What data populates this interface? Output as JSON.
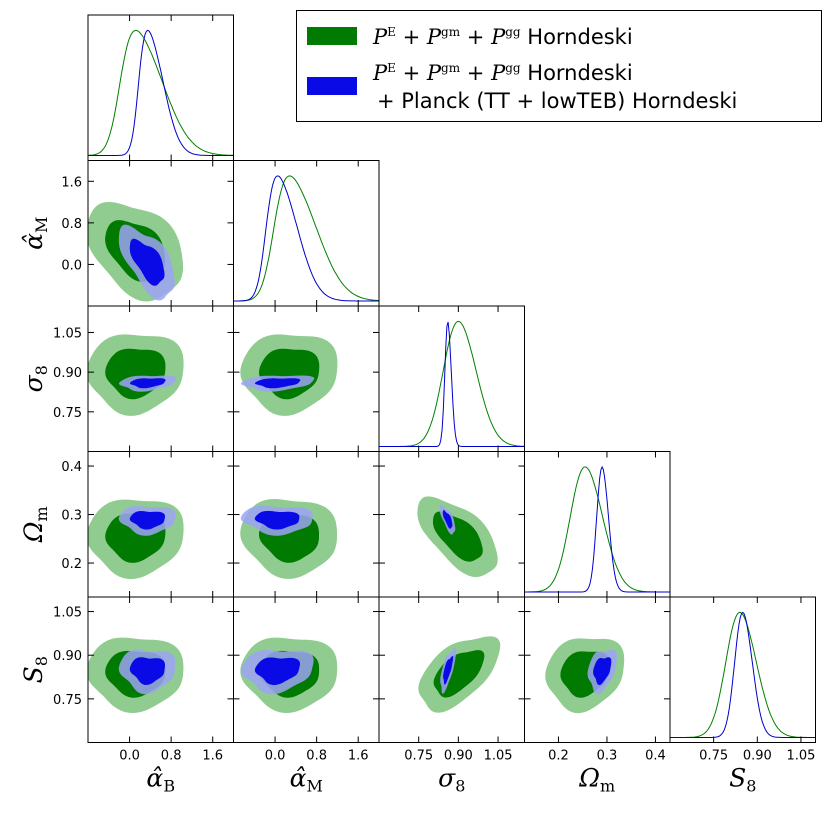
{
  "chart_data": {
    "type": "triangle-corner-plot",
    "title": "",
    "parameters": [
      {
        "key": "alpha_B",
        "label": "α̂",
        "sub": "B",
        "range": [
          -0.8,
          2.0
        ],
        "ticks": [
          0.0,
          0.8,
          1.6
        ],
        "tick_labels": [
          "0.0",
          "0.8",
          "1.6"
        ]
      },
      {
        "key": "alpha_M",
        "label": "α̂",
        "sub": "M",
        "range": [
          -0.8,
          2.0
        ],
        "ticks": [
          0.0,
          0.8,
          1.6
        ],
        "tick_labels": [
          "0.0",
          "0.8",
          "1.6"
        ]
      },
      {
        "key": "sigma_8",
        "label": "σ",
        "sub": "8",
        "range": [
          0.6,
          1.15
        ],
        "ticks": [
          0.75,
          0.9,
          1.05
        ],
        "tick_labels": [
          "0.75",
          "0.90",
          "1.05"
        ]
      },
      {
        "key": "Omega_m",
        "label": "Ω",
        "sub": "m",
        "range": [
          0.13,
          0.43
        ],
        "ticks": [
          0.2,
          0.3,
          0.4
        ],
        "tick_labels": [
          "0.2",
          "0.3",
          "0.4"
        ]
      },
      {
        "key": "S_8",
        "label": "S",
        "sub": "8",
        "range": [
          0.6,
          1.1
        ],
        "ticks": [
          0.75,
          0.9,
          1.05
        ],
        "tick_labels": [
          "0.75",
          "0.90",
          "1.05"
        ]
      }
    ],
    "series": [
      {
        "name": "green",
        "legend_math": "P",
        "legend_label": "Horndeski",
        "legend_label_line2": "",
        "line_color": "#008000",
        "inner_color": "#007a00",
        "outer_color": "#90cc90",
        "means": [
          0.12,
          0.28,
          0.9,
          0.255,
          0.84
        ],
        "sds": [
          0.38,
          0.38,
          0.062,
          0.033,
          0.052
        ],
        "corr": [
          [
            1,
            -0.35,
            0.05,
            0.05,
            0.0
          ],
          [
            -0.35,
            1,
            0.05,
            -0.05,
            0.0
          ],
          [
            0.05,
            0.05,
            1,
            -0.6,
            0.55
          ],
          [
            0.05,
            -0.05,
            -0.6,
            1,
            0.15
          ],
          [
            0.0,
            0.0,
            0.55,
            0.15,
            1
          ]
        ]
      },
      {
        "name": "blue",
        "legend_math": "P",
        "legend_label": "Horndeski",
        "legend_label_line2": "+ Planck (TT + lowTEB) Horndeski",
        "line_color": "#0000cc",
        "inner_color": "#0a0ae6",
        "outer_color": "#9da3f5",
        "means": [
          0.35,
          0.05,
          0.86,
          0.29,
          0.85
        ],
        "sds": [
          0.22,
          0.28,
          0.012,
          0.012,
          0.03
        ],
        "corr": [
          [
            1,
            -0.6,
            0.2,
            0.0,
            0.0
          ],
          [
            -0.6,
            1,
            0.2,
            -0.05,
            0.1
          ],
          [
            0.2,
            0.2,
            1,
            -0.7,
            0.7
          ],
          [
            0.0,
            -0.05,
            -0.7,
            1,
            0.3
          ],
          [
            0.0,
            0.1,
            0.7,
            0.3,
            1
          ]
        ]
      }
    ],
    "legend": {
      "placement": "top-right",
      "superscripts": [
        "E",
        "gm",
        "gg"
      ],
      "operator": "+"
    }
  }
}
